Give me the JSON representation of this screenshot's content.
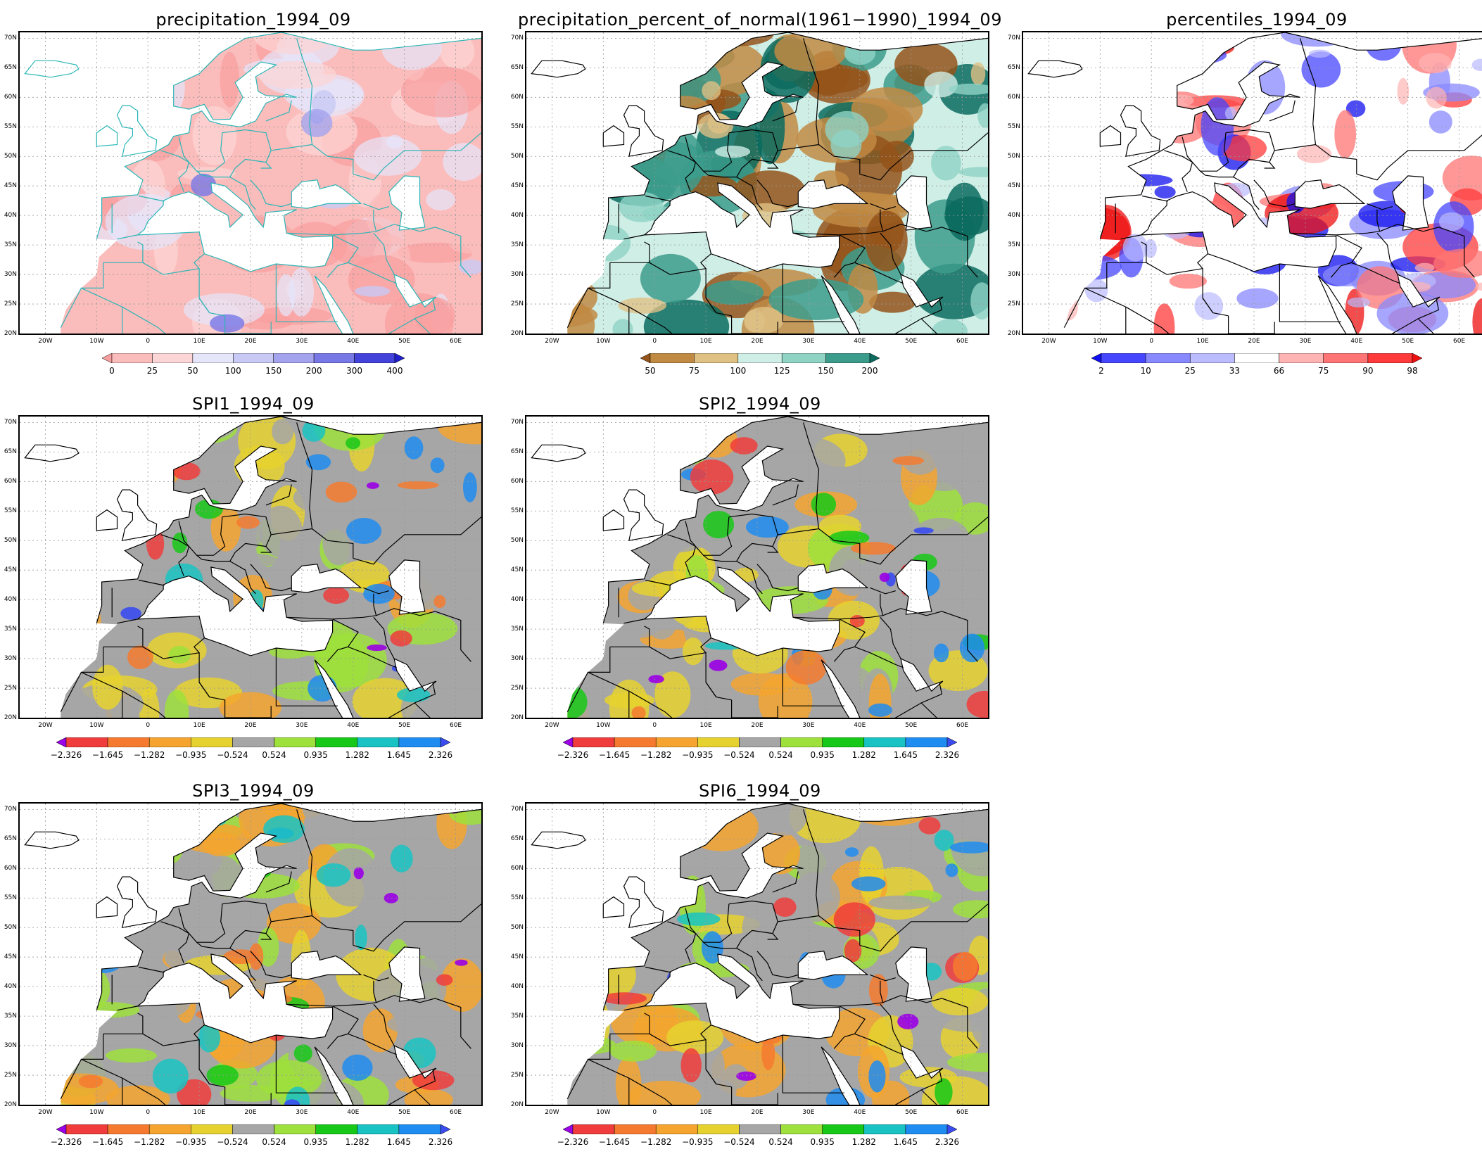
{
  "panels": [
    {
      "title": "precipitation_1994_09",
      "scheme": "precip",
      "seed": 3
    },
    {
      "title": "precipitation_percent_of_normal(1961−1990)_1994_09",
      "scheme": "pnorm",
      "seed": 7
    },
    {
      "title": "percentiles_1994_09",
      "scheme": "pct",
      "seed": 11
    },
    {
      "title": "SPI1_1994_09",
      "scheme": "spi",
      "seed": 17
    },
    {
      "title": "SPI2_1994_09",
      "scheme": "spi",
      "seed": 23
    },
    {
      "title": "SPI3_1994_09",
      "scheme": "spi",
      "seed": 29
    },
    {
      "title": "SPI6_1994_09",
      "scheme": "spi",
      "seed": 31
    }
  ],
  "axes": {
    "lat_labels": [
      "70N",
      "65N",
      "60N",
      "55N",
      "50N",
      "45N",
      "40N",
      "35N",
      "30N",
      "25N",
      "20N"
    ],
    "lon_labels": [
      "20W",
      "10W",
      "0",
      "10E",
      "20E",
      "30E",
      "40E",
      "50E",
      "60E"
    ]
  },
  "legends": {
    "precip": {
      "labels": [
        "0",
        "25",
        "50",
        "100",
        "150",
        "200",
        "300",
        "400"
      ],
      "colors": [
        "#f99e9e",
        "#fbbcbc",
        "#fcd6d6",
        "#e6e6fb",
        "#c9c9f5",
        "#a4a4ee",
        "#7777e6",
        "#4343dc",
        "#2020cc"
      ]
    },
    "pnorm": {
      "labels": [
        "50",
        "75",
        "100",
        "125",
        "150",
        "200"
      ],
      "colors": [
        "#94541a",
        "#c18a43",
        "#dfc184",
        "#cfeee6",
        "#8fd3c5",
        "#3c9c8c",
        "#0b6b5e"
      ]
    },
    "pct": {
      "labels": [
        "2",
        "10",
        "25",
        "33",
        "66",
        "75",
        "90",
        "98"
      ],
      "colors": [
        "#1010ee",
        "#4646ff",
        "#8888ff",
        "#bbbbff",
        "#ffffff",
        "#ffb4b4",
        "#ff7474",
        "#ff3a3a",
        "#ee1010"
      ]
    },
    "spi": {
      "labels": [
        "−2.326",
        "−1.645",
        "−1.282",
        "−0.935",
        "−0.524",
        "0.524",
        "0.935",
        "1.282",
        "1.645",
        "2.326"
      ],
      "colors": [
        "#9b00e6",
        "#f03c3c",
        "#f57a2f",
        "#f5a52f",
        "#e6d22f",
        "#a6a6a6",
        "#9ee03c",
        "#18c818",
        "#19c3c3",
        "#1e8cf0",
        "#3a4cf0"
      ]
    }
  }
}
